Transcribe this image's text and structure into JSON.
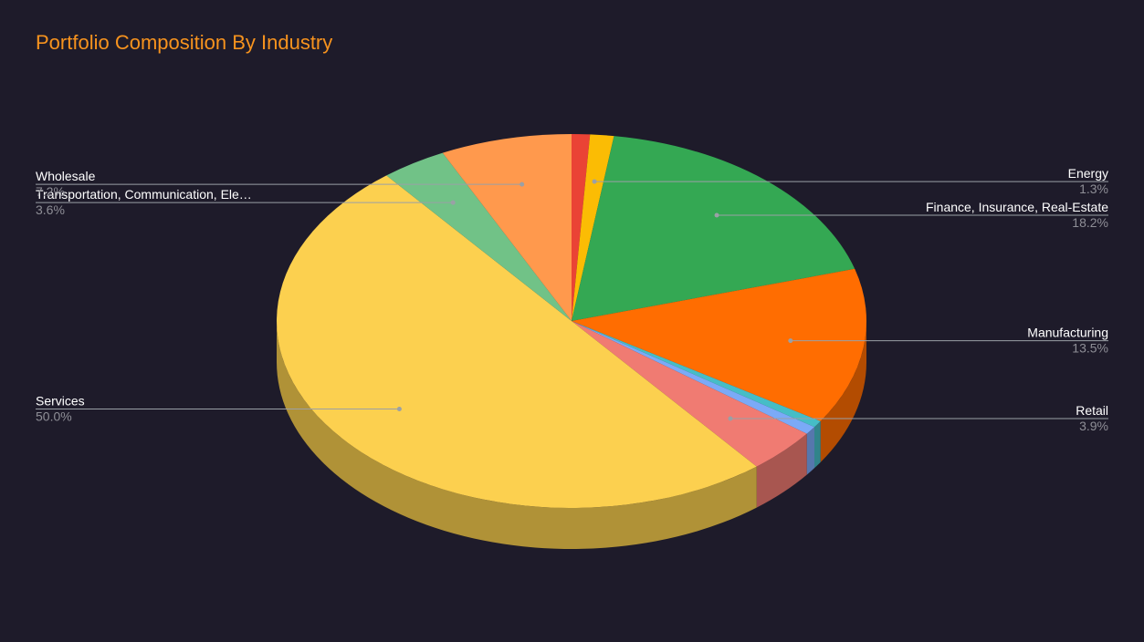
{
  "chart_data": {
    "type": "pie",
    "title": "Portfolio Composition By Industry",
    "categories": [
      null,
      "Energy",
      "Finance, Insurance, Real-Estate",
      "Manufacturing",
      null,
      null,
      "Retail",
      "Services",
      "Transportation, Communication, Ele…",
      "Wholesale"
    ],
    "values": [
      1.0,
      1.3,
      18.2,
      13.5,
      0.6,
      0.7,
      3.9,
      50.0,
      3.6,
      7.2
    ],
    "value_labels": [
      null,
      "1.3%",
      "18.2%",
      "13.5%",
      null,
      null,
      "3.9%",
      "50.0%",
      "3.6%",
      "7.2%"
    ],
    "colors": [
      "#ea4335",
      "#fbbc04",
      "#34a853",
      "#ff6d01",
      "#46bdc6",
      "#7baaf7",
      "#f07b72",
      "#fcd04f",
      "#71c287",
      "#ff994d"
    ],
    "three_d": true
  }
}
